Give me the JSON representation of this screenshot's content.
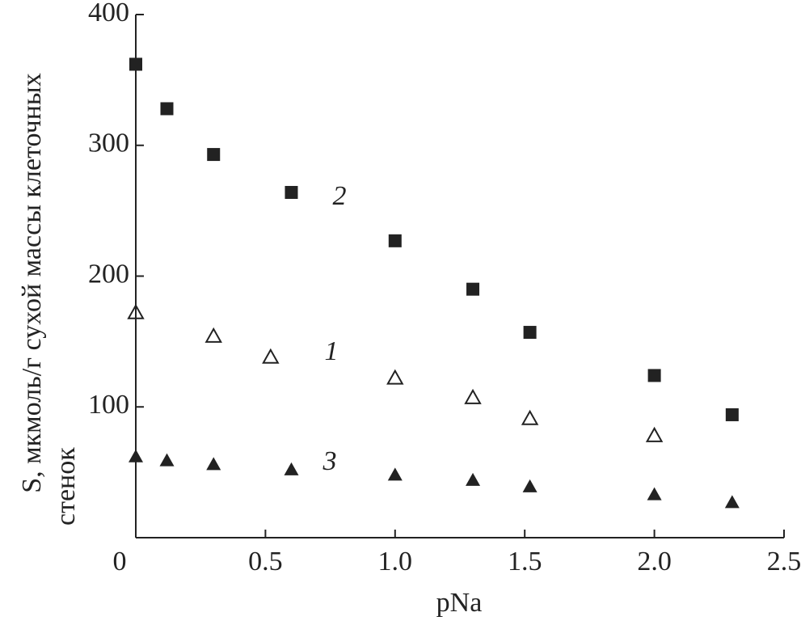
{
  "chart_data": {
    "type": "scatter",
    "xlabel": "pNa",
    "ylabel": [
      "S, мкмоль/г сухой массы клеточных",
      "стенок"
    ],
    "xlim": [
      0,
      2.5
    ],
    "ylim": [
      0,
      400
    ],
    "xticks": [
      0,
      {
        "value": 0.5,
        "label": "0.5"
      },
      {
        "value": 1,
        "label": "1.0"
      },
      {
        "value": 1.5,
        "label": "1.5"
      },
      {
        "value": 2,
        "label": "2.0"
      },
      {
        "value": 2.5,
        "label": "2.5"
      }
    ],
    "yticks": [
      100,
      200,
      300,
      400
    ],
    "series": [
      {
        "name": "1",
        "color": "#222222",
        "marker": "triangle-open",
        "x": [
          0,
          0.3,
          0.52,
          1.0,
          1.3,
          1.52,
          2.0
        ],
        "values": [
          172,
          154,
          138,
          122,
          107,
          91,
          78
        ]
      },
      {
        "name": "2",
        "color": "#222222",
        "marker": "square",
        "x": [
          0,
          0.12,
          0.3,
          0.6,
          1.0,
          1.3,
          1.52,
          2.0,
          2.3
        ],
        "values": [
          362,
          328,
          293,
          264,
          227,
          190,
          157,
          124,
          94
        ]
      },
      {
        "name": "3",
        "color": "#222222",
        "marker": "triangle",
        "x": [
          0,
          0.12,
          0.3,
          0.6,
          1.0,
          1.3,
          1.52,
          2.0,
          2.3
        ],
        "values": [
          62,
          59,
          56,
          52,
          48,
          44,
          39,
          33,
          27
        ]
      }
    ]
  }
}
